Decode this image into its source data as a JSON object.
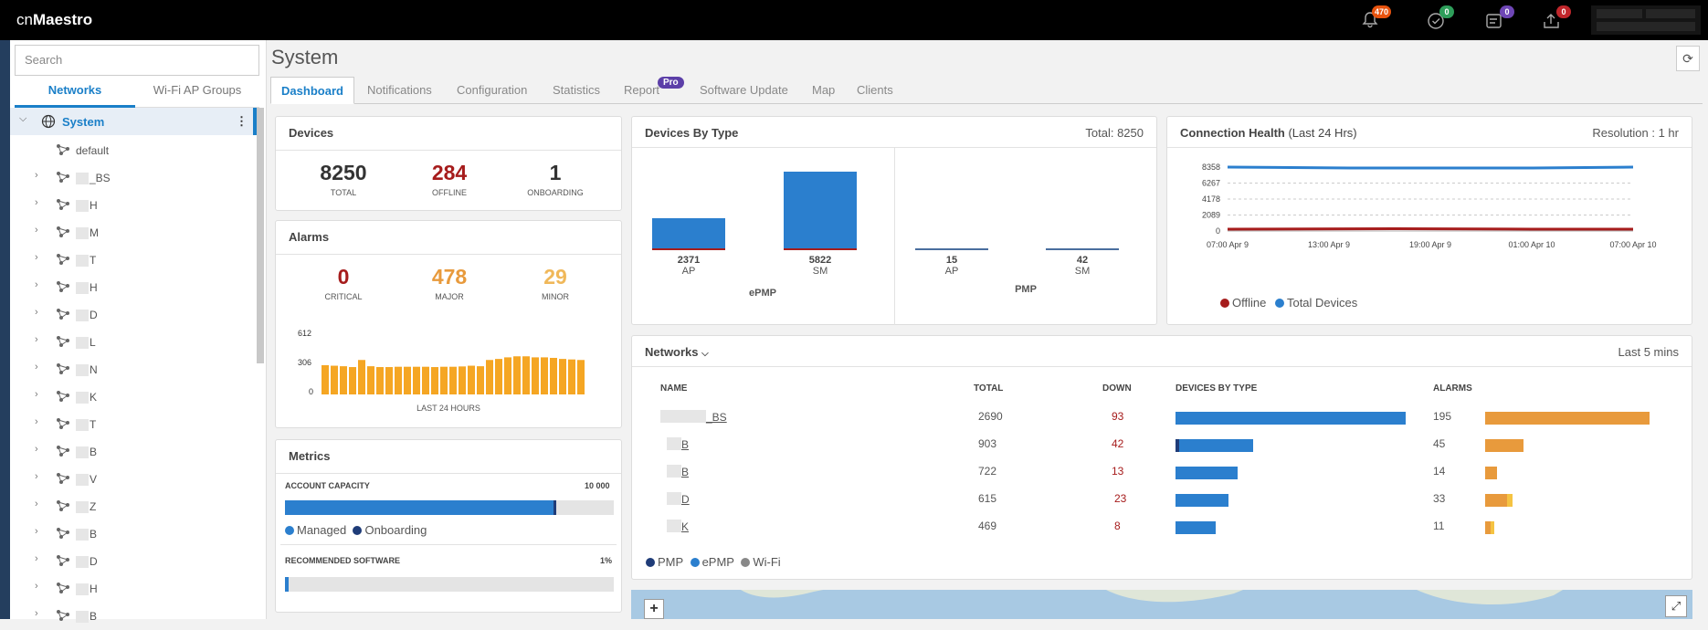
{
  "app": {
    "logo_prefix": "cn",
    "logo_bold": "Maestro"
  },
  "topbar": {
    "badges": [
      {
        "name": "bell-icon",
        "count": "470",
        "color": "#e8530e"
      },
      {
        "name": "check-circle-icon",
        "count": "0",
        "color": "#2e9e5a"
      },
      {
        "name": "tasks-icon",
        "count": "0",
        "color": "#6e46b5"
      },
      {
        "name": "upload-icon",
        "count": "0",
        "color": "#c0262b"
      }
    ]
  },
  "sidebar": {
    "search_placeholder": "Search",
    "tabs": [
      "Networks",
      "Wi-Fi AP Groups"
    ],
    "root": "System",
    "items": [
      {
        "label": "default"
      },
      {
        "label": "_BS"
      },
      {
        "label": "H"
      },
      {
        "label": "M"
      },
      {
        "label": "T"
      },
      {
        "label": "H"
      },
      {
        "label": "D"
      },
      {
        "label": "L"
      },
      {
        "label": "N"
      },
      {
        "label": "K"
      },
      {
        "label": "T"
      },
      {
        "label": "B"
      },
      {
        "label": "V"
      },
      {
        "label": "Z"
      },
      {
        "label": "B"
      },
      {
        "label": "D"
      },
      {
        "label": "H"
      },
      {
        "label": "B"
      }
    ]
  },
  "main": {
    "title": "System",
    "tabs": [
      "Dashboard",
      "Notifications",
      "Configuration",
      "Statistics",
      "Report",
      "Software Update",
      "Map",
      "Clients"
    ],
    "report_badge": "Pro"
  },
  "devices": {
    "title": "Devices",
    "total": "8250",
    "total_label": "TOTAL",
    "offline": "284",
    "offline_label": "OFFLINE",
    "onboarding": "1",
    "onboarding_label": "ONBOARDING"
  },
  "alarms": {
    "title": "Alarms",
    "critical": "0",
    "critical_label": "CRITICAL",
    "major": "478",
    "major_label": "MAJOR",
    "minor": "29",
    "minor_label": "MINOR",
    "yticks": [
      "612",
      "306",
      "0"
    ],
    "xlabel": "LAST 24 HOURS",
    "bars": [
      280,
      275,
      270,
      262,
      330,
      270,
      262,
      262,
      265,
      265,
      265,
      265,
      262,
      265,
      265,
      268,
      275,
      270,
      330,
      340,
      355,
      365,
      365,
      355,
      355,
      350,
      340,
      335,
      330
    ]
  },
  "metrics": {
    "title": "Metrics",
    "capacity_label": "ACCOUNT CAPACITY",
    "capacity_value": "10 000",
    "capacity_fraction": 0.825,
    "legend": [
      "Managed",
      "Onboarding"
    ],
    "software_label": "RECOMMENDED SOFTWARE",
    "software_value": "1%",
    "software_fraction": 0.01
  },
  "devices_by_type": {
    "title": "Devices By Type",
    "total_text": "Total: 8250",
    "groups": [
      {
        "name": "ePMP",
        "items": [
          {
            "label": "AP",
            "value": 2371
          },
          {
            "label": "SM",
            "value": 5822
          }
        ]
      },
      {
        "name": "PMP",
        "items": [
          {
            "label": "AP",
            "value": 15
          },
          {
            "label": "SM",
            "value": 42
          }
        ]
      }
    ]
  },
  "connection_health": {
    "title": "Connection Health",
    "subtitle": "(Last 24 Hrs)",
    "resolution": "Resolution : 1 hr",
    "yticks": [
      "8358",
      "6267",
      "4178",
      "2089",
      "0"
    ],
    "xticks": [
      "07:00 Apr 9",
      "13:00 Apr 9",
      "19:00 Apr 9",
      "01:00 Apr 10",
      "07:00 Apr 10"
    ],
    "legend": [
      "Offline",
      "Total Devices"
    ]
  },
  "networks": {
    "title": "Networks",
    "period": "Last 5 mins",
    "headers": [
      "NAME",
      "TOTAL",
      "DOWN",
      "DEVICES BY TYPE",
      "ALARMS"
    ],
    "rows": [
      {
        "name": "_BS",
        "total": "2690",
        "down": "93",
        "alarms": "195",
        "pmp": 0,
        "epmp": 2690,
        "major": 195,
        "minor": 0
      },
      {
        "name": "B",
        "total": "903",
        "down": "42",
        "alarms": "45",
        "pmp": 40,
        "epmp": 863,
        "major": 45,
        "minor": 0
      },
      {
        "name": "B",
        "total": "722",
        "down": "13",
        "alarms": "14",
        "pmp": 0,
        "epmp": 722,
        "major": 14,
        "minor": 0
      },
      {
        "name": "D",
        "total": "615",
        "down": "23",
        "alarms": "33",
        "pmp": 0,
        "epmp": 615,
        "major": 26,
        "minor": 7
      },
      {
        "name": "K",
        "total": "469",
        "down": "8",
        "alarms": "11",
        "pmp": 0,
        "epmp": 469,
        "major": 7,
        "minor": 4
      }
    ],
    "legend": [
      "PMP",
      "ePMP",
      "Wi-Fi"
    ]
  },
  "map": {
    "zoom_in": "+",
    "expand": "⤢"
  },
  "colors": {
    "blue": "#2b7fce",
    "dark_blue": "#1f3c78",
    "orange": "#f5a623",
    "red": "#a61c1c",
    "green": "#2e9e5a",
    "major": "#e89a3c",
    "minor": "#f5c342"
  }
}
